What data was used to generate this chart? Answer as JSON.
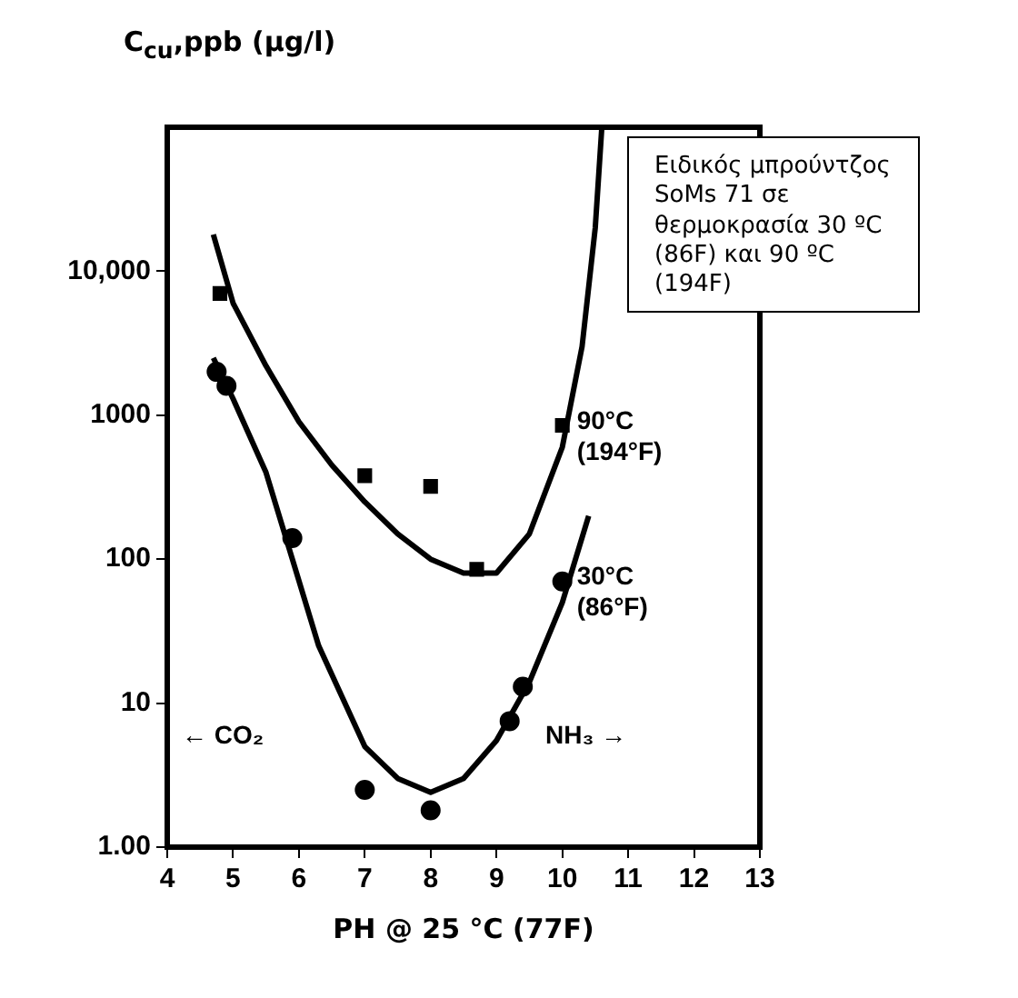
{
  "chart_data": {
    "type": "scatter",
    "xlabel": "PH @ 25 °C (77F)",
    "ylabel": "C$_{cu}$,ppb (μg/l)",
    "log": "y",
    "grid": false,
    "legend": false,
    "xlim": [
      4,
      13
    ],
    "xticks": [
      4,
      5,
      6,
      7,
      8,
      9,
      10,
      11,
      12,
      13
    ],
    "ylim": [
      1,
      100000
    ],
    "yticks": [
      {
        "value": 1,
        "label": "1.00"
      },
      10,
      100,
      1000,
      {
        "value": 10000,
        "label": "10,000"
      }
    ],
    "series": [
      {
        "marker": "square",
        "color": "#000000",
        "x": [
          4.8,
          7.0,
          8.0,
          8.7,
          10.0
        ],
        "values": [
          7000,
          380,
          320,
          85,
          850
        ]
      },
      {
        "marker": "circle",
        "color": "#000000",
        "x": [
          4.75,
          4.9,
          5.9,
          7.0,
          8.0,
          9.2,
          9.4,
          10.0
        ],
        "values": [
          2000,
          1600,
          140,
          2.5,
          1.8,
          7.5,
          13,
          70
        ]
      },
      {
        "type": "line",
        "name": "90°C\n(194°F)",
        "marker": "none",
        "line_style": "solid",
        "color": "#000000",
        "x": [
          4.7,
          5,
          5.5,
          6,
          6.5,
          7,
          7.5,
          8,
          8.5,
          9,
          9.5,
          10,
          10.3,
          10.5,
          10.6
        ],
        "values": [
          18000,
          6000,
          2200,
          900,
          450,
          250,
          150,
          100,
          80,
          80,
          150,
          600,
          3000,
          20000,
          100000
        ]
      },
      {
        "type": "line",
        "name": "30°C\n(86°F)",
        "marker": "none",
        "line_style": "solid",
        "color": "#000000",
        "x": [
          4.7,
          5,
          5.5,
          5.9,
          6.3,
          7,
          7.5,
          8,
          8.5,
          9,
          9.5,
          10,
          10.4
        ],
        "values": [
          2500,
          1300,
          400,
          100,
          25,
          5,
          3,
          2.4,
          3,
          5.5,
          14,
          50,
          200
        ]
      }
    ],
    "annotations": [
      "← CO₂",
      "NH₃ →",
      "Ειδικός μπρούντζος SoMs 71 σε θερμοκρασία 30 ºC (86F) και 90 ºC (194F)"
    ]
  }
}
